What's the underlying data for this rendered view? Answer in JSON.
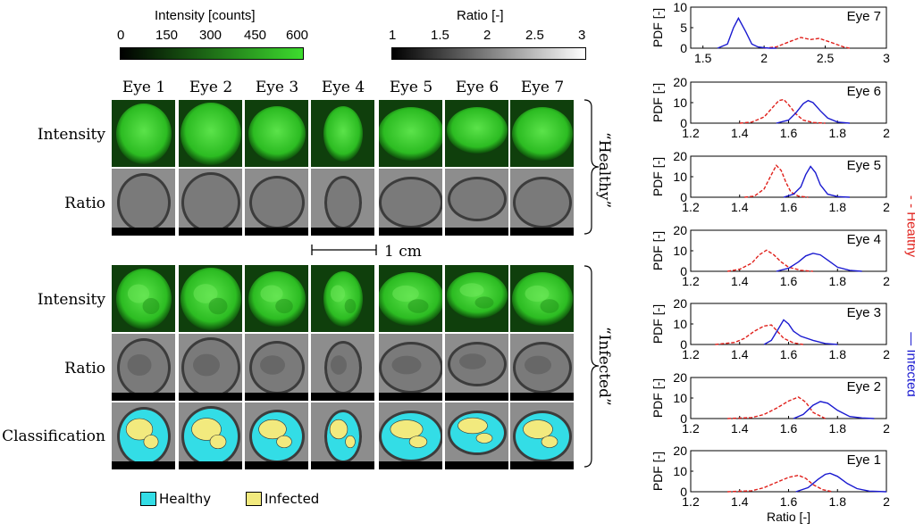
{
  "colorbars": {
    "intensity": {
      "title": "Intensity [counts]",
      "ticks": [
        "0",
        "150",
        "300",
        "450",
        "600"
      ],
      "colors": [
        "#000000",
        "#3ddc2e"
      ]
    },
    "ratio": {
      "title": "Ratio [-]",
      "ticks": [
        "1",
        "1.5",
        "2",
        "2.5",
        "3"
      ],
      "colors": [
        "#000000",
        "#ffffff"
      ]
    }
  },
  "grid": {
    "columns": [
      "Eye 1",
      "Eye 2",
      "Eye 3",
      "Eye 4",
      "Eye 5",
      "Eye 6",
      "Eye 7"
    ],
    "healthy_rows": [
      "Intensity",
      "Ratio"
    ],
    "infected_rows": [
      "Intensity",
      "Ratio",
      "Classification"
    ],
    "healthy_group_label": "“Healthy”",
    "infected_group_label": "“Infected”",
    "scale_bar_label": "1 cm"
  },
  "legend": {
    "items": [
      {
        "label": "Healthy",
        "color": "#33dde6"
      },
      {
        "label": "Infected",
        "color": "#f2ea7e"
      }
    ]
  },
  "side_legend": {
    "healthy_label": "- -  Healthy",
    "infected_label": "—  Infected",
    "healthy_color": "#e0201b",
    "infected_color": "#1a1ad0"
  },
  "chart_data": [
    {
      "type": "line",
      "title": "Eye 7",
      "ylabel": "PDF [-]",
      "xlim": [
        1.4,
        3
      ],
      "ylim": [
        0,
        10
      ],
      "xticks": [
        "1.5",
        "2",
        "2.5",
        "3"
      ],
      "yticks": [
        "0",
        "5",
        "10"
      ],
      "series": [
        {
          "name": "Infected",
          "style": "solid",
          "color": "#1a1ad0",
          "x": [
            1.62,
            1.7,
            1.75,
            1.79,
            1.85,
            1.9,
            1.95,
            2.0,
            2.05,
            2.1
          ],
          "y": [
            0.0,
            1.0,
            5.0,
            7.3,
            4.0,
            1.0,
            0.3,
            0.1,
            0.0,
            0.0
          ]
        },
        {
          "name": "Healthy",
          "style": "dashed",
          "color": "#e0201b",
          "x": [
            2.0,
            2.1,
            2.2,
            2.3,
            2.38,
            2.45,
            2.55,
            2.65,
            2.7
          ],
          "y": [
            0.0,
            0.3,
            1.5,
            2.6,
            2.1,
            2.4,
            1.4,
            0.3,
            0.0
          ]
        }
      ]
    },
    {
      "type": "line",
      "title": "Eye 6",
      "ylabel": "PDF [-]",
      "xlim": [
        1.2,
        2
      ],
      "ylim": [
        0,
        20
      ],
      "xticks": [
        "1.2",
        "1.4",
        "1.6",
        "1.8",
        "2"
      ],
      "yticks": [
        "0",
        "10",
        "20"
      ],
      "series": [
        {
          "name": "Infected",
          "style": "solid",
          "color": "#1a1ad0",
          "x": [
            1.55,
            1.6,
            1.63,
            1.66,
            1.68,
            1.7,
            1.73,
            1.76,
            1.8,
            1.85
          ],
          "y": [
            0.0,
            1.5,
            5.0,
            9.5,
            11.0,
            10.0,
            6.0,
            2.5,
            0.5,
            0.0
          ]
        },
        {
          "name": "Healthy",
          "style": "dashed",
          "color": "#e0201b",
          "x": [
            1.4,
            1.45,
            1.5,
            1.53,
            1.56,
            1.58,
            1.6,
            1.63,
            1.66,
            1.7,
            1.75
          ],
          "y": [
            0.0,
            0.5,
            3.0,
            7.0,
            11.0,
            11.5,
            9.0,
            4.5,
            1.5,
            0.3,
            0.0
          ]
        }
      ]
    },
    {
      "type": "line",
      "title": "Eye 5",
      "ylabel": "PDF [-]",
      "xlim": [
        1.2,
        2
      ],
      "ylim": [
        0,
        20
      ],
      "xticks": [
        "1.2",
        "1.4",
        "1.6",
        "1.8",
        "2"
      ],
      "yticks": [
        "0",
        "10",
        "20"
      ],
      "series": [
        {
          "name": "Infected",
          "style": "solid",
          "color": "#1a1ad0",
          "x": [
            1.58,
            1.62,
            1.65,
            1.67,
            1.69,
            1.71,
            1.73,
            1.76,
            1.8,
            1.85
          ],
          "y": [
            0.0,
            1.5,
            5.0,
            11.0,
            15.0,
            12.0,
            6.0,
            1.5,
            0.3,
            0.0
          ]
        },
        {
          "name": "Healthy",
          "style": "dashed",
          "color": "#e0201b",
          "x": [
            1.42,
            1.46,
            1.5,
            1.53,
            1.55,
            1.57,
            1.59,
            1.61,
            1.64,
            1.68
          ],
          "y": [
            0.0,
            0.5,
            4.0,
            11.0,
            15.5,
            13.0,
            7.0,
            2.5,
            0.5,
            0.0
          ]
        }
      ]
    },
    {
      "type": "line",
      "title": "Eye 4",
      "ylabel": "PDF [-]",
      "xlim": [
        1.2,
        2
      ],
      "ylim": [
        0,
        20
      ],
      "xticks": [
        "1.2",
        "1.4",
        "1.6",
        "1.8",
        "2"
      ],
      "yticks": [
        "0",
        "10",
        "20"
      ],
      "series": [
        {
          "name": "Infected",
          "style": "solid",
          "color": "#1a1ad0",
          "x": [
            1.55,
            1.6,
            1.64,
            1.67,
            1.7,
            1.73,
            1.76,
            1.8,
            1.85,
            1.9
          ],
          "y": [
            0.0,
            1.5,
            4.5,
            7.5,
            8.8,
            8.0,
            5.5,
            2.0,
            0.5,
            0.0
          ]
        },
        {
          "name": "Healthy",
          "style": "dashed",
          "color": "#e0201b",
          "x": [
            1.35,
            1.4,
            1.45,
            1.48,
            1.51,
            1.54,
            1.57,
            1.6,
            1.65,
            1.7
          ],
          "y": [
            0.0,
            1.0,
            4.0,
            8.0,
            10.3,
            8.0,
            4.5,
            2.0,
            0.5,
            0.0
          ]
        }
      ]
    },
    {
      "type": "line",
      "title": "Eye 3",
      "ylabel": "PDF [-]",
      "xlim": [
        1.2,
        2
      ],
      "ylim": [
        0,
        20
      ],
      "xticks": [
        "1.2",
        "1.4",
        "1.6",
        "1.8",
        "2"
      ],
      "yticks": [
        "0",
        "10",
        "20"
      ],
      "series": [
        {
          "name": "Infected",
          "style": "solid",
          "color": "#1a1ad0",
          "x": [
            1.5,
            1.53,
            1.56,
            1.58,
            1.6,
            1.62,
            1.65,
            1.7,
            1.75,
            1.8
          ],
          "y": [
            0.0,
            2.0,
            8.0,
            12.0,
            10.0,
            6.5,
            4.0,
            2.0,
            0.5,
            0.0
          ]
        },
        {
          "name": "Healthy",
          "style": "dashed",
          "color": "#e0201b",
          "x": [
            1.3,
            1.38,
            1.42,
            1.46,
            1.5,
            1.53,
            1.55,
            1.58,
            1.62,
            1.66
          ],
          "y": [
            0.0,
            1.0,
            3.0,
            6.5,
            9.0,
            9.5,
            7.0,
            3.0,
            0.8,
            0.0
          ]
        }
      ]
    },
    {
      "type": "line",
      "title": "Eye 2",
      "ylabel": "PDF [-]",
      "xlim": [
        1.2,
        2
      ],
      "ylim": [
        0,
        20
      ],
      "xticks": [
        "1.2",
        "1.4",
        "1.6",
        "1.8",
        "2"
      ],
      "yticks": [
        "0",
        "10",
        "20"
      ],
      "series": [
        {
          "name": "Infected",
          "style": "solid",
          "color": "#1a1ad0",
          "x": [
            1.62,
            1.66,
            1.7,
            1.73,
            1.76,
            1.8,
            1.85,
            1.9,
            1.95
          ],
          "y": [
            0.0,
            2.0,
            6.5,
            8.3,
            7.5,
            4.0,
            1.0,
            0.3,
            0.0
          ]
        },
        {
          "name": "Healthy",
          "style": "dashed",
          "color": "#e0201b",
          "x": [
            1.35,
            1.45,
            1.5,
            1.55,
            1.6,
            1.64,
            1.67,
            1.7,
            1.75
          ],
          "y": [
            0.0,
            0.5,
            2.0,
            5.0,
            8.5,
            10.5,
            8.0,
            3.0,
            0.0
          ]
        }
      ]
    },
    {
      "type": "line",
      "title": "Eye 1",
      "ylabel": "PDF [-]",
      "xlabel": "Ratio [-]",
      "xlim": [
        1.2,
        2
      ],
      "ylim": [
        0,
        20
      ],
      "xticks": [
        "1.2",
        "1.4",
        "1.6",
        "1.8",
        "2"
      ],
      "yticks": [
        "0",
        "10",
        "20"
      ],
      "series": [
        {
          "name": "Infected",
          "style": "solid",
          "color": "#1a1ad0",
          "x": [
            1.63,
            1.68,
            1.72,
            1.75,
            1.77,
            1.8,
            1.84,
            1.88,
            1.93,
            2.0
          ],
          "y": [
            0.0,
            2.0,
            6.0,
            8.5,
            9.0,
            7.5,
            4.0,
            1.5,
            0.3,
            0.0
          ]
        },
        {
          "name": "Healthy",
          "style": "dashed",
          "color": "#e0201b",
          "x": [
            1.35,
            1.45,
            1.5,
            1.55,
            1.6,
            1.64,
            1.67,
            1.7,
            1.74,
            1.78
          ],
          "y": [
            0.0,
            0.5,
            2.0,
            4.5,
            7.0,
            8.0,
            6.5,
            3.5,
            1.0,
            0.0
          ]
        }
      ]
    }
  ]
}
